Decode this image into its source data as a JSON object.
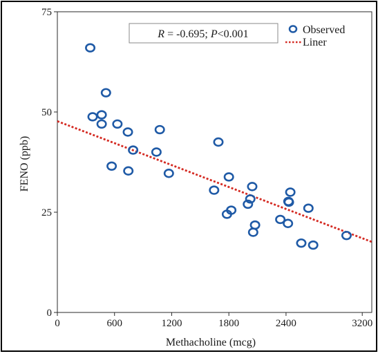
{
  "chart_data": {
    "type": "scatter",
    "xlabel": "Methacholine (mcg)",
    "ylabel": "FENO (ppb)",
    "xlim": [
      0,
      3300
    ],
    "ylim": [
      0,
      75
    ],
    "x_ticks": [
      0,
      600,
      1200,
      1800,
      2400,
      3200
    ],
    "x_tick_labels": [
      "0",
      "600",
      "1200",
      "1800",
      "2400",
      "3200"
    ],
    "y_ticks": [
      0,
      25,
      50,
      75
    ],
    "y_tick_labels": [
      "0",
      "25",
      "50",
      "75"
    ],
    "grid": false,
    "legend_position": "top-right",
    "stat_annotation": {
      "r_symbol": "R",
      "r_text": " = -0.695; ",
      "p_symbol": "P",
      "p_text": "<0.001"
    },
    "series": [
      {
        "name": "Observed",
        "kind": "scatter",
        "marker": "open-circle",
        "color": "#1f5aa6",
        "points": [
          [
            345,
            66.0
          ],
          [
            370,
            48.8
          ],
          [
            465,
            49.3
          ],
          [
            465,
            47.0
          ],
          [
            510,
            54.8
          ],
          [
            570,
            36.5
          ],
          [
            630,
            47.0
          ],
          [
            740,
            45.0
          ],
          [
            745,
            35.3
          ],
          [
            795,
            40.5
          ],
          [
            1040,
            40.0
          ],
          [
            1075,
            45.6
          ],
          [
            1170,
            34.7
          ],
          [
            1645,
            30.5
          ],
          [
            1690,
            42.5
          ],
          [
            1780,
            24.5
          ],
          [
            1800,
            33.8
          ],
          [
            1825,
            25.5
          ],
          [
            2000,
            27.0
          ],
          [
            2025,
            28.3
          ],
          [
            2045,
            31.4
          ],
          [
            2055,
            20.0
          ],
          [
            2075,
            21.8
          ],
          [
            2340,
            23.2
          ],
          [
            2420,
            22.2
          ],
          [
            2425,
            27.7
          ],
          [
            2430,
            27.5
          ],
          [
            2445,
            30.0
          ],
          [
            2560,
            17.3
          ],
          [
            2635,
            26.0
          ],
          [
            2685,
            16.8
          ],
          [
            3035,
            19.2
          ]
        ]
      },
      {
        "name": "Liner",
        "kind": "line",
        "style": "dotted",
        "color": "#d42a22",
        "points": [
          [
            0,
            47.7
          ],
          [
            3300,
            17.6
          ]
        ]
      }
    ]
  }
}
